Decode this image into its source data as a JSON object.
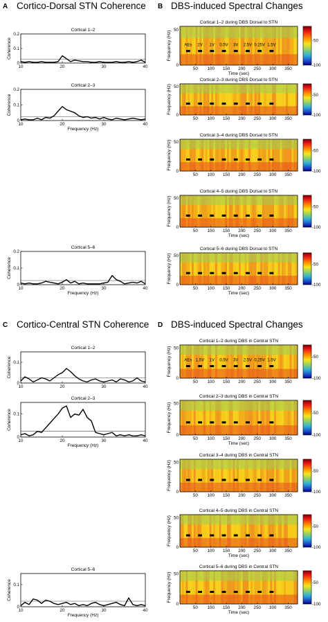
{
  "figure": {
    "sections": [
      {
        "letter": "A",
        "title": "Cortico-Dorsal STN Coherence"
      },
      {
        "letter": "B",
        "title": "DBS-induced Spectral Changes"
      },
      {
        "letter": "C",
        "title": "Cortico-Central STN Coherence"
      },
      {
        "letter": "D",
        "title": "DBS-induced Spectral Changes"
      }
    ]
  },
  "chart_data": [
    {
      "type": "line",
      "panel": "A",
      "title": "Cortical 1–2",
      "xlabel": "",
      "ylabel": "Coherence",
      "xlim": [
        10,
        40
      ],
      "ylim": [
        0,
        0.2
      ],
      "xticks": [
        10,
        20,
        30,
        40
      ],
      "yticks": [
        0,
        0.1,
        0.2
      ],
      "threshold": 0.025,
      "x": [
        10,
        11,
        12,
        13,
        14,
        15,
        16,
        17,
        18,
        19,
        20,
        21,
        22,
        23,
        24,
        25,
        26,
        27,
        28,
        29,
        30,
        31,
        32,
        33,
        34,
        35,
        36,
        37,
        38,
        39,
        40
      ],
      "y": [
        0.01,
        0.005,
        0.01,
        0.005,
        0.005,
        0.01,
        0.005,
        0.005,
        0.005,
        0.01,
        0.05,
        0.03,
        0.01,
        0.02,
        0.015,
        0.01,
        0.01,
        0.005,
        0.005,
        0.01,
        0.005,
        0.005,
        0.005,
        0.01,
        0.005,
        0.005,
        0.01,
        0.005,
        0.01,
        0.02,
        0.005
      ]
    },
    {
      "type": "line",
      "panel": "A",
      "title": "Cortical 2–3",
      "xlabel": "Frequency (Hz)",
      "ylabel": "Coherence",
      "xlim": [
        10,
        40
      ],
      "ylim": [
        0,
        0.2
      ],
      "xticks": [
        10,
        20,
        30,
        40
      ],
      "yticks": [
        0,
        0.1,
        0.2
      ],
      "threshold": 0.025,
      "x": [
        10,
        11,
        12,
        13,
        14,
        15,
        16,
        17,
        18,
        19,
        20,
        21,
        22,
        23,
        24,
        25,
        26,
        27,
        28,
        29,
        30,
        31,
        32,
        33,
        34,
        35,
        36,
        37,
        38,
        39,
        40
      ],
      "y": [
        0.005,
        0.01,
        0.005,
        0.005,
        0.015,
        0.005,
        0.02,
        0.015,
        0.03,
        0.06,
        0.09,
        0.07,
        0.06,
        0.05,
        0.03,
        0.02,
        0.025,
        0.015,
        0.02,
        0.01,
        0.02,
        0.01,
        0.005,
        0.015,
        0.01,
        0.005,
        0.01,
        0.015,
        0.01,
        0.005,
        0.01
      ]
    },
    {
      "type": "line",
      "panel": "A",
      "title": "Cortical 5–6",
      "xlabel": "Frequency (Hz)",
      "ylabel": "Coherence",
      "xlim": [
        10,
        40
      ],
      "ylim": [
        0,
        0.2
      ],
      "xticks": [
        10,
        20,
        30,
        40
      ],
      "yticks": [
        0,
        0.1,
        0.2
      ],
      "threshold": 0.025,
      "x": [
        10,
        11,
        12,
        13,
        14,
        15,
        16,
        17,
        18,
        19,
        20,
        21,
        22,
        23,
        24,
        25,
        26,
        27,
        28,
        29,
        30,
        31,
        32,
        33,
        34,
        35,
        36,
        37,
        38,
        39,
        40
      ],
      "y": [
        0.01,
        0.005,
        0.01,
        0.005,
        0.005,
        0.01,
        0.02,
        0.015,
        0.01,
        0.005,
        0.015,
        0.03,
        0.01,
        0.02,
        0.005,
        0.01,
        0.005,
        0.005,
        0.005,
        0.005,
        0.01,
        0.015,
        0.055,
        0.03,
        0.02,
        0.005,
        0.01,
        0.015,
        0.01,
        0.02,
        0.005
      ]
    },
    {
      "type": "line",
      "panel": "C",
      "title": "Cortical 1–2",
      "xlabel": "",
      "ylabel": "Coherence",
      "xlim": [
        10,
        40
      ],
      "ylim": [
        0,
        0.15
      ],
      "xticks": [
        10,
        20,
        30,
        40
      ],
      "yticks": [
        0,
        0.1
      ],
      "threshold": 0.025,
      "x": [
        10,
        11,
        12,
        13,
        14,
        15,
        16,
        17,
        18,
        19,
        20,
        21,
        22,
        23,
        24,
        25,
        26,
        27,
        28,
        29,
        30,
        31,
        32,
        33,
        34,
        35,
        36,
        37,
        38,
        39,
        40
      ],
      "y": [
        0.01,
        0.03,
        0.02,
        0.005,
        0.015,
        0.025,
        0.02,
        0.01,
        0.025,
        0.04,
        0.05,
        0.07,
        0.055,
        0.035,
        0.02,
        0.01,
        0.005,
        0.015,
        0.02,
        0.01,
        0.005,
        0.01,
        0.015,
        0.005,
        0.02,
        0.015,
        0.005,
        0.01,
        0.025,
        0.01,
        0.005
      ]
    },
    {
      "type": "line",
      "panel": "C",
      "title": "Cortical 2–3",
      "xlabel": "Frequency (Hz)",
      "ylabel": "Coherence",
      "xlim": [
        10,
        40
      ],
      "ylim": [
        0,
        0.15
      ],
      "xticks": [
        10,
        20,
        30,
        40
      ],
      "yticks": [
        0,
        0.1
      ],
      "threshold": 0.025,
      "x": [
        10,
        11,
        12,
        13,
        14,
        15,
        16,
        17,
        18,
        19,
        20,
        21,
        22,
        23,
        24,
        25,
        26,
        27,
        28,
        29,
        30,
        31,
        32,
        33,
        34,
        35,
        36,
        37,
        38,
        39,
        40
      ],
      "y": [
        0.01,
        0.015,
        0.005,
        0.01,
        0.025,
        0.02,
        0.04,
        0.06,
        0.08,
        0.1,
        0.125,
        0.135,
        0.085,
        0.1,
        0.095,
        0.12,
        0.085,
        0.07,
        0.02,
        0.015,
        0.01,
        0.015,
        0.02,
        0.005,
        0.01,
        0.005,
        0.01,
        0.005,
        0.005,
        0.01,
        0.005
      ]
    },
    {
      "type": "line",
      "panel": "C",
      "title": "Cortical 5–6",
      "xlabel": "Frequency (Hz)",
      "ylabel": "Coherence",
      "xlim": [
        10,
        40
      ],
      "ylim": [
        0,
        0.15
      ],
      "xticks": [
        10,
        20,
        30,
        40
      ],
      "yticks": [
        0,
        0.1
      ],
      "threshold": 0.025,
      "x": [
        10,
        11,
        12,
        13,
        14,
        15,
        16,
        17,
        18,
        19,
        20,
        21,
        22,
        23,
        24,
        25,
        26,
        27,
        28,
        29,
        30,
        31,
        32,
        33,
        34,
        35,
        36,
        37,
        38,
        39,
        40
      ],
      "y": [
        0.005,
        0.02,
        0.01,
        0.035,
        0.03,
        0.015,
        0.03,
        0.025,
        0.015,
        0.01,
        0.015,
        0.02,
        0.01,
        0.015,
        0.005,
        0.01,
        0.005,
        0.015,
        0.02,
        0.01,
        0.005,
        0.01,
        0.015,
        0.02,
        0.01,
        0.005,
        0.04,
        0.01,
        0.005,
        0.01,
        0.005
      ]
    },
    {
      "type": "heatmap",
      "panel": "B",
      "title": "Cortical 1–2 during DBS Dorsal to STN",
      "xlabel": "Time (sec)",
      "ylabel": "Frequency (Hz)",
      "xticks": [
        50,
        100,
        150,
        200,
        250,
        300,
        350
      ],
      "yticks": [
        0,
        50
      ],
      "color_range": [
        -100,
        -50
      ],
      "colorbar_ticks": [
        "-50",
        "-100"
      ],
      "beta_band_hz": 20,
      "stim_segments": 8,
      "pulse_labels": [
        "AEs",
        "2V",
        "1V",
        "0.5V",
        "3V",
        "2.5V",
        "0.25V",
        "1.5V"
      ]
    },
    {
      "type": "heatmap",
      "panel": "B",
      "title": "Cortical 2–3 during DBS Dorsal to STN",
      "xlabel": "",
      "ylabel": "Frequency (Hz)",
      "xticks": [
        50,
        100,
        150,
        200,
        250,
        300,
        350
      ],
      "yticks": [
        0,
        50
      ],
      "color_range": [
        -100,
        -50
      ],
      "colorbar_ticks": [
        "-50",
        "-100"
      ],
      "beta_band_hz": 20,
      "stim_segments": 8,
      "pulse_labels": []
    },
    {
      "type": "heatmap",
      "panel": "B",
      "title": "Cortical 3–4 during DBS Dorsal to STN",
      "xlabel": "",
      "ylabel": "Frequency (Hz)",
      "xticks": [
        50,
        100,
        150,
        200,
        250,
        300,
        350
      ],
      "yticks": [
        0,
        50
      ],
      "color_range": [
        -100,
        -50
      ],
      "colorbar_ticks": [
        "-50",
        "-100"
      ],
      "beta_band_hz": 20,
      "stim_segments": 8,
      "pulse_labels": []
    },
    {
      "type": "heatmap",
      "panel": "B",
      "title": "Cortical 4–5 during DBS Dorsal to STN",
      "xlabel": "Time (sec)",
      "ylabel": "Frequency (Hz)",
      "xticks": [
        50,
        100,
        150,
        200,
        250,
        300,
        350
      ],
      "yticks": [
        0,
        50
      ],
      "color_range": [
        -100,
        -50
      ],
      "colorbar_ticks": [
        "-50",
        "-100"
      ],
      "beta_band_hz": 20,
      "stim_segments": 8,
      "pulse_labels": []
    },
    {
      "type": "heatmap",
      "panel": "B",
      "title": "Cortical 5–6 during DBS Dorsal to STN",
      "xlabel": "Time (sec)",
      "ylabel": "Frequency (Hz)",
      "xticks": [
        50,
        100,
        150,
        200,
        250,
        300,
        350
      ],
      "yticks": [
        0,
        50
      ],
      "color_range": [
        -100,
        -50
      ],
      "colorbar_ticks": [
        "-50",
        "-100"
      ],
      "beta_band_hz": 20,
      "stim_segments": 8,
      "pulse_labels": []
    },
    {
      "type": "heatmap",
      "panel": "D",
      "title": "Cortical 1–2 during DBS in Central STN",
      "xlabel": "",
      "ylabel": "Frequency (Hz)",
      "xticks": [
        50,
        100,
        150,
        200,
        250,
        300,
        350
      ],
      "yticks": [
        0,
        50
      ],
      "color_range": [
        -100,
        -50
      ],
      "colorbar_ticks": [
        "-50",
        "-100"
      ],
      "beta_band_hz": 20,
      "stim_segments": 8,
      "pulse_labels": [
        "AEs",
        "1.5V",
        "1V",
        "0.5V",
        "3V",
        "2.5V",
        "0.25V",
        "1.5V"
      ]
    },
    {
      "type": "heatmap",
      "panel": "D",
      "title": "Cortical 2–3 during DBS in Central STN",
      "xlabel": "Time (sec)",
      "ylabel": "Frequency (Hz)",
      "xticks": [
        50,
        100,
        150,
        200,
        250,
        300,
        350
      ],
      "yticks": [
        0,
        50
      ],
      "color_range": [
        -100,
        -50
      ],
      "colorbar_ticks": [
        "-50",
        "-100"
      ],
      "beta_band_hz": 20,
      "stim_segments": 8,
      "pulse_labels": []
    },
    {
      "type": "heatmap",
      "panel": "D",
      "title": "Cortical 3–4 during DBS in Central STN",
      "xlabel": "",
      "ylabel": "Frequency (Hz)",
      "xticks": [
        50,
        100,
        150,
        200,
        250,
        300,
        350
      ],
      "yticks": [
        0,
        50
      ],
      "color_range": [
        -100,
        -50
      ],
      "colorbar_ticks": [
        "-50",
        "-100"
      ],
      "beta_band_hz": 20,
      "stim_segments": 8,
      "pulse_labels": []
    },
    {
      "type": "heatmap",
      "panel": "D",
      "title": "Cortical 4–5 during DBS in Central STN",
      "xlabel": "Time (sec)",
      "ylabel": "Frequency (Hz)",
      "xticks": [
        50,
        100,
        150,
        200,
        250,
        300,
        350
      ],
      "yticks": [
        0,
        50
      ],
      "color_range": [
        -100,
        -50
      ],
      "colorbar_ticks": [
        "-50",
        "-100"
      ],
      "beta_band_hz": 20,
      "stim_segments": 8,
      "pulse_labels": []
    },
    {
      "type": "heatmap",
      "panel": "D",
      "title": "Cortical 5–6 during DBS in Central STN",
      "xlabel": "Time (sec)",
      "ylabel": "Frequency (Hz)",
      "xticks": [
        50,
        100,
        150,
        200,
        250,
        300,
        350
      ],
      "yticks": [
        0,
        50
      ],
      "color_range": [
        -100,
        -50
      ],
      "colorbar_ticks": [
        "-50",
        "-100"
      ],
      "beta_band_hz": 20,
      "stim_segments": 8,
      "pulse_labels": []
    }
  ]
}
